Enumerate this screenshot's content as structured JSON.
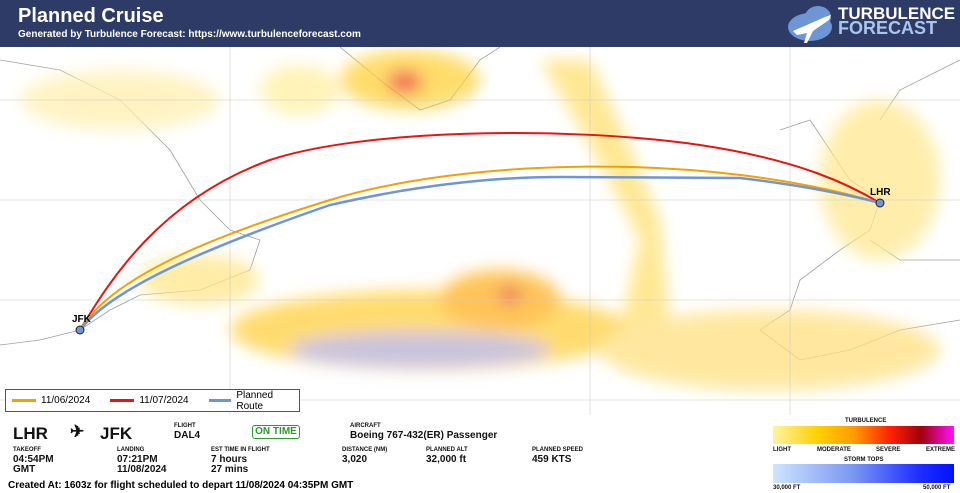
{
  "header": {
    "title": "Planned Cruise",
    "subtitle": "Generated by Turbulence Forecast: https://www.turbulenceforecast.com",
    "logo_line1": "TURBULENCE",
    "logo_line2": "FORECAST"
  },
  "map": {
    "origin_label": "LHR",
    "destination_label": "JFK",
    "route_colors": {
      "d1106": "#f5a000",
      "d1107": "#ee1111",
      "planned": "#6f96d4"
    }
  },
  "route_legend": [
    {
      "label": "11/06/2024",
      "color": "#f5a000"
    },
    {
      "label": "11/07/2024",
      "color": "#ee1111"
    },
    {
      "label": "Planned Route",
      "color": "#6f96d4"
    }
  ],
  "flight": {
    "from": "LHR",
    "to": "JFK",
    "flight_label": "FLIGHT",
    "flight": "DAL4",
    "status": "ON TIME",
    "aircraft_label": "AIRCRAFT",
    "aircraft": "Boeing 767-432(ER) Passenger",
    "takeoff_label": "TAKEOFF",
    "takeoff_time": "04:54PM",
    "takeoff_tz": "GMT",
    "landing_label": "LANDING",
    "landing_time": "07:21PM",
    "landing_date": "11/08/2024",
    "est_label": "EST TIME IN FLIGHT",
    "est_hours": "7 hours",
    "est_mins": "27 mins",
    "distance_label": "DISTANCE (NM)",
    "distance": "3,020",
    "alt_label": "PLANNED ALT",
    "alt": "32,000 ft",
    "speed_label": "PLANNED SPEED",
    "speed": "459 KTS",
    "created": "Created At: 1603z for flight scheduled to depart 11/08/2024 04:35PM GMT"
  },
  "legend": {
    "turbulence_title": "TURBULENCE",
    "turb_labels": [
      "LIGHT",
      "MODERATE",
      "SEVERE",
      "EXTREME"
    ],
    "storm_title": "STORM TOPS",
    "storm_min": "30,000 FT",
    "storm_max": "50,000 FT"
  }
}
